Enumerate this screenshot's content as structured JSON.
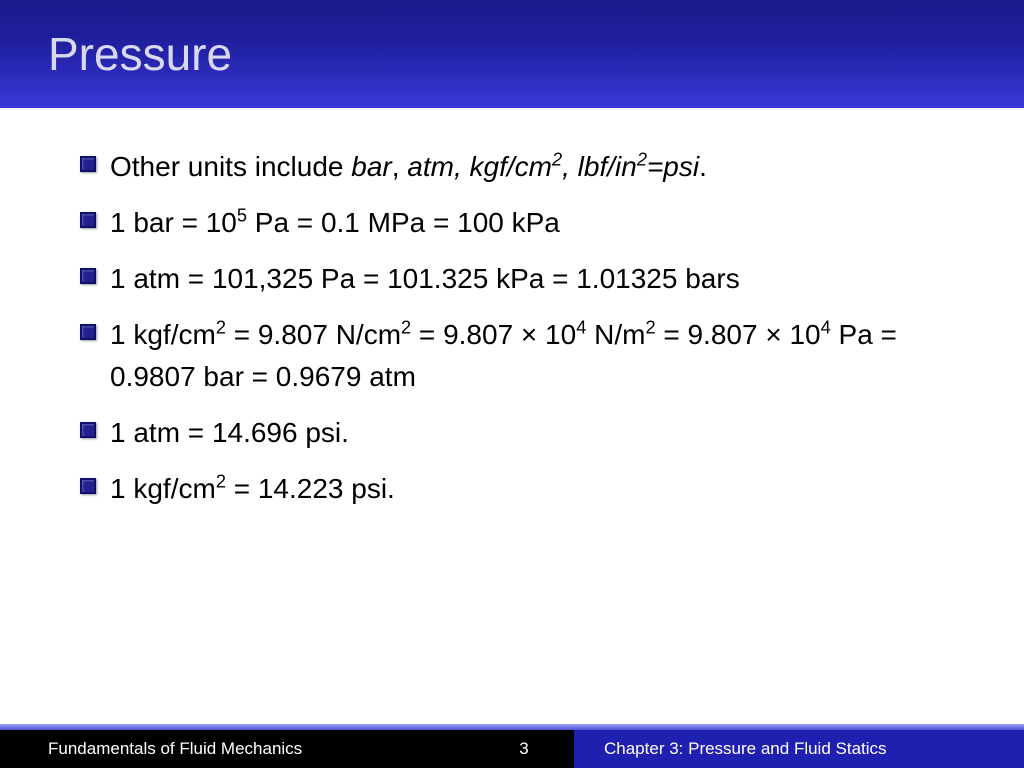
{
  "title": "Pressure",
  "bullets": {
    "b1_pre": "Other units include ",
    "b1_italic": "bar",
    "b1_mid1": ", ",
    "b1_italic2": "atm, kgf/cm",
    "b1_sup1": "2",
    "b1_italic3": ", lbf/in",
    "b1_sup2": "2",
    "b1_italic4": "=psi",
    "b1_end": ".",
    "b2_a": "1 bar = 10",
    "b2_sup": "5",
    "b2_b": " Pa = 0.1 MPa = 100 kPa",
    "b3": "1 atm = 101,325 Pa = 101.325 kPa  = 1.01325 bars",
    "b4_a": "1 kgf/cm",
    "b4_s1": "2",
    "b4_b": " = 9.807 N/cm",
    "b4_s2": "2",
    "b4_c": " = 9.807 × 10",
    "b4_s3": "4",
    "b4_d": " N/m",
    "b4_s4": "2",
    "b4_e": " = 9.807 × 10",
    "b4_s5": "4",
    "b4_f": " Pa =  0.9807 bar = 0.9679 atm",
    "b5": "1 atm = 14.696 psi.",
    "b6_a": "1 kgf/cm",
    "b6_s1": "2",
    "b6_b": " = 14.223 psi."
  },
  "footer": {
    "left": "Fundamentals of Fluid Mechanics",
    "page": "3",
    "right": "Chapter 3:  Pressure and Fluid Statics"
  },
  "colors": {
    "title_bg_top": "#1a1a8a",
    "title_bg_bottom": "#3838d8",
    "title_text": "#d8d8f0",
    "bullet_fill": "#202090",
    "body_text": "#000000",
    "footer_left_bg": "#000000",
    "footer_right_bg": "#2020b0",
    "footer_text": "#ffffff"
  },
  "fonts": {
    "title_size": 46,
    "body_size": 28,
    "footer_size": 17
  }
}
